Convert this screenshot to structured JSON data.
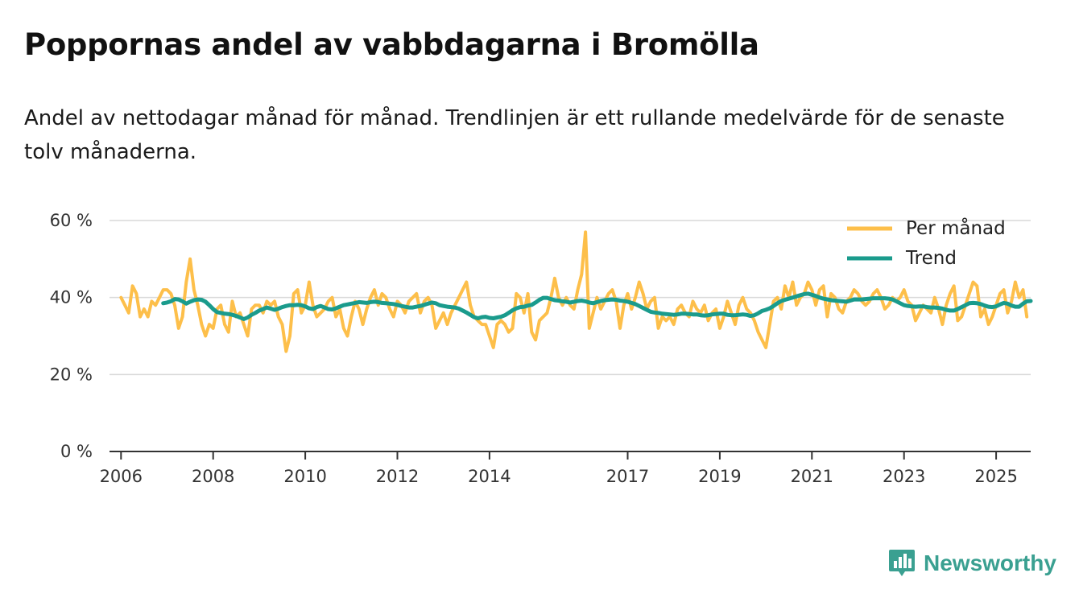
{
  "header": {
    "title": "Poppornas andel av vabbdagarna i Bromölla",
    "subtitle": "Andel av nettodagar månad för månad. Trendlinjen är ett rullande medelvärde för de senaste tolv månaderna."
  },
  "brand": {
    "name": "Newsworthy",
    "icon": "bar-chart-logo-icon",
    "color": "#3aa091"
  },
  "chart_data": {
    "type": "line",
    "title": "Poppornas andel av vabbdagarna i Bromölla",
    "xlabel": "",
    "ylabel": "",
    "xlim": [
      2005.75,
      2025.75
    ],
    "ylim": [
      0,
      60
    ],
    "y_ticks": [
      0,
      20,
      40,
      60
    ],
    "y_tick_labels": [
      "0 %",
      "20 %",
      "40 %",
      "60 %"
    ],
    "x_ticks": [
      2006,
      2008,
      2010,
      2012,
      2014,
      2017,
      2019,
      2021,
      2023,
      2025
    ],
    "x_tick_labels": [
      "2006",
      "2008",
      "2010",
      "2012",
      "2014",
      "2017",
      "2019",
      "2021",
      "2023",
      "2025"
    ],
    "grid": true,
    "legend_position": "top-right",
    "series": [
      {
        "name": "Per månad",
        "color": "#fdbf4a",
        "start": 2006.0,
        "step_months": 1,
        "values": [
          40,
          38,
          36,
          43,
          41,
          35,
          37,
          35,
          39,
          38,
          40,
          42,
          42,
          41,
          38,
          32,
          35,
          44,
          50,
          42,
          38,
          33,
          30,
          33,
          32,
          37,
          38,
          33,
          31,
          39,
          35,
          36,
          33,
          30,
          37,
          38,
          38,
          36,
          39,
          38,
          39,
          35,
          33,
          26,
          30,
          41,
          42,
          36,
          38,
          44,
          38,
          35,
          36,
          37,
          39,
          40,
          35,
          37,
          32,
          30,
          35,
          39,
          37,
          33,
          37,
          40,
          42,
          38,
          41,
          40,
          37,
          35,
          39,
          38,
          36,
          39,
          40,
          41,
          36,
          39,
          40,
          38,
          32,
          34,
          36,
          33,
          36,
          38,
          40,
          42,
          44,
          38,
          35,
          34,
          33,
          33,
          30,
          27,
          33,
          34,
          33,
          31,
          32,
          41,
          40,
          36,
          41,
          31,
          29,
          34,
          35,
          36,
          40,
          45,
          40,
          38,
          40,
          38,
          37,
          42,
          46,
          57,
          32,
          36,
          40,
          37,
          39,
          41,
          42,
          39,
          32,
          38,
          41,
          37,
          40,
          44,
          41,
          37,
          39,
          40,
          32,
          35,
          34,
          35,
          33,
          37,
          38,
          36,
          35,
          39,
          37,
          36,
          38,
          34,
          36,
          37,
          32,
          35,
          39,
          36,
          33,
          38,
          40,
          37,
          36,
          34,
          31,
          29,
          27,
          33,
          39,
          40,
          37,
          43,
          40,
          44,
          38,
          40,
          41,
          44,
          42,
          38,
          42,
          43,
          35,
          41,
          40,
          37,
          36,
          39,
          40,
          42,
          41,
          39,
          38,
          39,
          41,
          42,
          40,
          37,
          38,
          40,
          39,
          40,
          42,
          39,
          38,
          34,
          36,
          38,
          37,
          36,
          40,
          37,
          33,
          38,
          41,
          43,
          34,
          35,
          38,
          41,
          44,
          43,
          35,
          37,
          33,
          35,
          38,
          41,
          42,
          36,
          39,
          44,
          40,
          42,
          35
        ]
      },
      {
        "name": "Trend",
        "color": "#1a9b8c",
        "start": 2006.9167,
        "step_months": 1,
        "values": [
          38.5,
          38.7,
          39,
          39.6,
          39.5,
          39.0,
          38.4,
          38.9,
          39.3,
          39.5,
          39.4,
          38.9,
          38.0,
          37.0,
          36.2,
          36.0,
          35.8,
          35.7,
          35.5,
          35.2,
          34.8,
          34.4,
          34.8,
          35.5,
          36.0,
          36.6,
          37.0,
          37.4,
          37.1,
          36.8,
          37.1,
          37.5,
          37.8,
          38.0,
          38.0,
          38.1,
          38.0,
          37.7,
          37.2,
          37.0,
          37.5,
          37.8,
          37.4,
          37.0,
          36.9,
          37.2,
          37.6,
          38.0,
          38.2,
          38.4,
          38.6,
          38.8,
          38.7,
          38.6,
          38.8,
          38.9,
          38.8,
          38.6,
          38.5,
          38.4,
          38.3,
          38.1,
          37.8,
          37.6,
          37.4,
          37.4,
          37.6,
          37.8,
          38.1,
          38.4,
          38.7,
          38.5,
          38.0,
          37.8,
          37.6,
          37.5,
          37.4,
          37.1,
          36.6,
          36.1,
          35.5,
          34.9,
          34.6,
          34.9,
          35.0,
          34.7,
          34.6,
          34.8,
          35.0,
          35.4,
          36.0,
          36.7,
          37.2,
          37.5,
          37.6,
          37.9,
          38.1,
          38.7,
          39.4,
          39.9,
          39.9,
          39.6,
          39.3,
          39.2,
          39.0,
          38.9,
          38.7,
          38.9,
          39.1,
          39.2,
          39.0,
          38.7,
          38.5,
          38.8,
          39.1,
          39.3,
          39.4,
          39.5,
          39.4,
          39.2,
          39.1,
          38.9,
          38.6,
          38.3,
          37.8,
          37.3,
          36.8,
          36.3,
          36.1,
          36.0,
          35.8,
          35.7,
          35.6,
          35.5,
          35.6,
          35.8,
          35.8,
          35.7,
          35.6,
          35.6,
          35.4,
          35.3,
          35.4,
          35.6,
          35.7,
          35.8,
          35.8,
          35.5,
          35.4,
          35.4,
          35.5,
          35.6,
          35.5,
          35.2,
          35.4,
          35.9,
          36.5,
          36.8,
          37.2,
          37.8,
          38.5,
          39.1,
          39.4,
          39.7,
          40.0,
          40.3,
          40.6,
          40.9,
          41.0,
          40.7,
          40.4,
          40.0,
          39.7,
          39.5,
          39.3,
          39.2,
          39.1,
          39.0,
          38.9,
          39.2,
          39.5,
          39.5,
          39.5,
          39.6,
          39.7,
          39.8,
          39.8,
          39.8,
          39.8,
          39.7,
          39.5,
          39.0,
          38.5,
          38.0,
          37.8,
          37.7,
          37.6,
          37.7,
          37.7,
          37.5,
          37.4,
          37.4,
          37.3,
          37.1,
          36.8,
          36.6,
          36.6,
          37.0,
          37.5,
          38.0,
          38.5,
          38.6,
          38.5,
          38.3,
          37.9,
          37.6,
          37.5,
          37.7,
          38.2,
          38.6,
          38.4,
          37.9,
          37.6,
          37.6,
          38.4,
          39.0,
          39.1
        ]
      }
    ]
  }
}
